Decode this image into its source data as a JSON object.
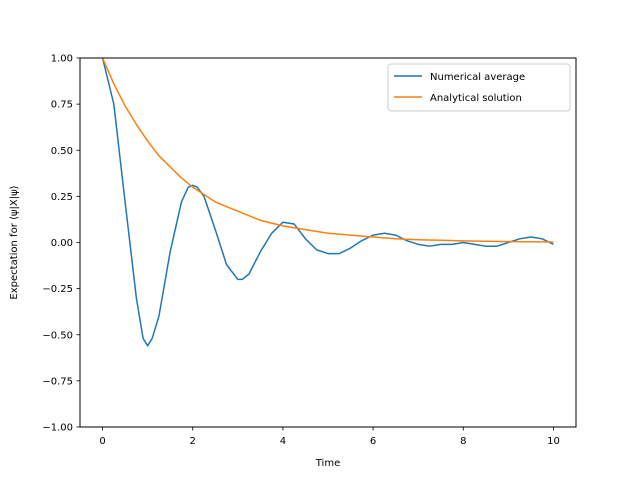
{
  "chart_data": {
    "type": "line",
    "title": "",
    "xlabel": "Time",
    "ylabel": "Expectation for ⟨ψ|X|ψ⟩",
    "xlim": [
      -0.5,
      10.5
    ],
    "ylim": [
      -1.0,
      1.0
    ],
    "xticks": [
      0,
      2,
      4,
      6,
      8,
      10
    ],
    "xtick_labels": [
      "0",
      "2",
      "4",
      "6",
      "8",
      "10"
    ],
    "yticks": [
      -1.0,
      -0.75,
      -0.5,
      -0.25,
      0.0,
      0.25,
      0.5,
      0.75,
      1.0
    ],
    "ytick_labels": [
      "−1.00",
      "−0.75",
      "−0.50",
      "−0.25",
      "0.00",
      "0.25",
      "0.50",
      "0.75",
      "1.00"
    ],
    "grid": false,
    "legend_position": "upper right",
    "series": [
      {
        "name": "Numerical average",
        "color": "#1f77b4",
        "x": [
          0,
          0.25,
          0.5,
          0.75,
          0.9,
          1.0,
          1.1,
          1.25,
          1.5,
          1.75,
          1.9,
          2.0,
          2.1,
          2.25,
          2.5,
          2.75,
          3.0,
          3.1,
          3.25,
          3.5,
          3.75,
          4.0,
          4.25,
          4.5,
          4.75,
          5.0,
          5.25,
          5.5,
          5.75,
          6.0,
          6.25,
          6.5,
          6.75,
          7.0,
          7.25,
          7.5,
          7.75,
          8.0,
          8.25,
          8.5,
          8.75,
          9.0,
          9.25,
          9.5,
          9.75,
          10.0
        ],
        "y": [
          1.0,
          0.75,
          0.22,
          -0.3,
          -0.52,
          -0.56,
          -0.52,
          -0.4,
          -0.05,
          0.22,
          0.3,
          0.31,
          0.3,
          0.25,
          0.07,
          -0.12,
          -0.2,
          -0.2,
          -0.17,
          -0.05,
          0.05,
          0.11,
          0.1,
          0.02,
          -0.04,
          -0.06,
          -0.06,
          -0.03,
          0.01,
          0.04,
          0.05,
          0.04,
          0.01,
          -0.01,
          -0.02,
          -0.01,
          -0.01,
          0.0,
          -0.01,
          -0.02,
          -0.02,
          0.0,
          0.02,
          0.03,
          0.02,
          -0.01
        ]
      },
      {
        "name": "Analytical solution",
        "color": "#ff7f0e",
        "x": [
          0,
          0.25,
          0.5,
          0.75,
          1.0,
          1.25,
          1.5,
          1.75,
          2.0,
          2.5,
          3.0,
          3.5,
          4.0,
          4.5,
          5.0,
          5.5,
          6.0,
          6.5,
          7.0,
          7.5,
          8.0,
          8.5,
          9.0,
          9.5,
          10.0
        ],
        "y": [
          1.0,
          0.86,
          0.74,
          0.64,
          0.55,
          0.47,
          0.41,
          0.35,
          0.3,
          0.22,
          0.17,
          0.12,
          0.09,
          0.07,
          0.05,
          0.04,
          0.03,
          0.02,
          0.015,
          0.012,
          0.009,
          0.007,
          0.005,
          0.004,
          0.003
        ]
      }
    ]
  }
}
